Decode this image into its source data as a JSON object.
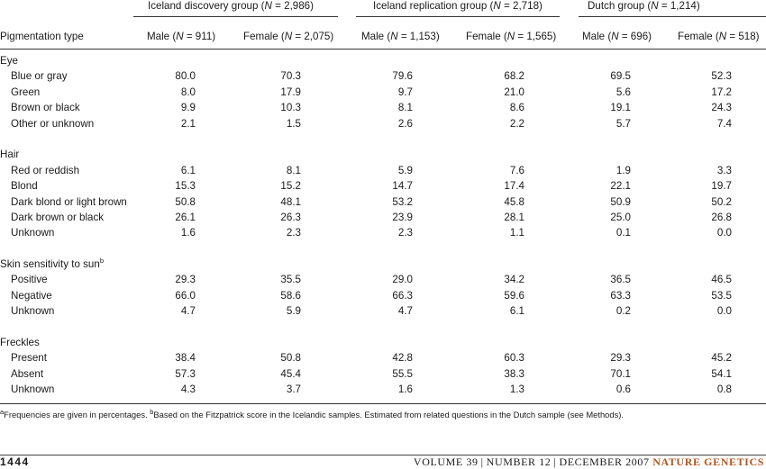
{
  "groups": [
    {
      "pre": "Iceland discovery group (",
      "n": "N",
      "post": " = 2,986)"
    },
    {
      "pre": "Iceland replication group (",
      "n": "N",
      "post": " = 2,718)"
    },
    {
      "pre": "Dutch group (",
      "n": "N",
      "post": " = 1,214)"
    }
  ],
  "header": {
    "type_label": "Pigmentation type",
    "columns": [
      {
        "pre": "Male (",
        "n": "N",
        "post": " = 911)"
      },
      {
        "pre": "Female (",
        "n": "N",
        "post": " = 2,075)"
      },
      {
        "pre": "Male (",
        "n": "N",
        "post": " = 1,153)"
      },
      {
        "pre": "Female (",
        "n": "N",
        "post": " = 1,565)"
      },
      {
        "pre": "Male (",
        "n": "N",
        "post": " = 696)"
      },
      {
        "pre": "Female (",
        "n": "N",
        "post": " = 518)"
      }
    ]
  },
  "sections": [
    {
      "title": "Eye",
      "sup": "",
      "rows": [
        {
          "label": "Blue or gray",
          "values": [
            "80.0",
            "70.3",
            "79.6",
            "68.2",
            "69.5",
            "52.3"
          ]
        },
        {
          "label": "Green",
          "values": [
            "8.0",
            "17.9",
            "9.7",
            "21.0",
            "5.6",
            "17.2"
          ]
        },
        {
          "label": "Brown or black",
          "values": [
            "9.9",
            "10.3",
            "8.1",
            "8.6",
            "19.1",
            "24.3"
          ]
        },
        {
          "label": "Other or unknown",
          "values": [
            "2.1",
            "1.5",
            "2.6",
            "2.2",
            "5.7",
            "7.4"
          ]
        }
      ]
    },
    {
      "title": "Hair",
      "sup": "",
      "rows": [
        {
          "label": "Red or reddish",
          "values": [
            "6.1",
            "8.1",
            "5.9",
            "7.6",
            "1.9",
            "3.3"
          ]
        },
        {
          "label": "Blond",
          "values": [
            "15.3",
            "15.2",
            "14.7",
            "17.4",
            "22.1",
            "19.7"
          ]
        },
        {
          "label": "Dark blond or light brown",
          "values": [
            "50.8",
            "48.1",
            "53.2",
            "45.8",
            "50.9",
            "50.2"
          ]
        },
        {
          "label": "Dark brown or black",
          "values": [
            "26.1",
            "26.3",
            "23.9",
            "28.1",
            "25.0",
            "26.8"
          ]
        },
        {
          "label": "Unknown",
          "values": [
            "1.6",
            "2.3",
            "2.3",
            "1.1",
            "0.1",
            "0.0"
          ]
        }
      ]
    },
    {
      "title": "Skin sensitivity to sun",
      "sup": "b",
      "rows": [
        {
          "label": "Positive",
          "values": [
            "29.3",
            "35.5",
            "29.0",
            "34.2",
            "36.5",
            "46.5"
          ]
        },
        {
          "label": "Negative",
          "values": [
            "66.0",
            "58.6",
            "66.3",
            "59.6",
            "63.3",
            "53.5"
          ]
        },
        {
          "label": "Unknown",
          "values": [
            "4.7",
            "5.9",
            "4.7",
            "6.1",
            "0.2",
            "0.0"
          ]
        }
      ]
    },
    {
      "title": "Freckles",
      "sup": "",
      "rows": [
        {
          "label": "Present",
          "values": [
            "38.4",
            "50.8",
            "42.8",
            "60.3",
            "29.3",
            "45.2"
          ]
        },
        {
          "label": "Absent",
          "values": [
            "57.3",
            "45.4",
            "55.5",
            "38.3",
            "70.1",
            "54.1"
          ]
        },
        {
          "label": "Unknown",
          "values": [
            "4.3",
            "3.7",
            "1.6",
            "1.3",
            "0.6",
            "0.8"
          ]
        }
      ]
    }
  ],
  "footnote": {
    "a_mark": "a",
    "a_text": "Frequencies are given in percentages. ",
    "b_mark": "b",
    "b_text": "Based on the Fitzpatrick score in the Icelandic samples. Estimated from related questions in the Dutch sample (see Methods)."
  },
  "footer": {
    "page": "1444",
    "volume": "VOLUME 39",
    "number": "NUMBER 12",
    "date": "DECEMBER 2007",
    "sep": "|",
    "journal": "NATURE GENETICS"
  }
}
